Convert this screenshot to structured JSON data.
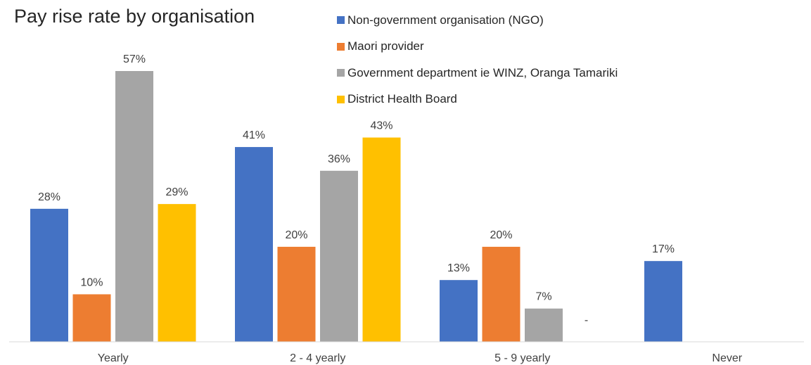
{
  "chart_data": {
    "type": "bar",
    "title": "Pay rise rate by organisation",
    "categories": [
      "Yearly",
      "2 - 4 yearly",
      "5 - 9 yearly",
      "Never"
    ],
    "series": [
      {
        "name": "Non-government organisation (NGO)",
        "color": "#4472C4",
        "values": [
          28,
          41,
          13,
          17
        ],
        "labels": [
          "28%",
          "41%",
          "13%",
          "17%"
        ]
      },
      {
        "name": "Maori provider",
        "color": "#ED7D31",
        "values": [
          10,
          20,
          20,
          null
        ],
        "labels": [
          "10%",
          "20%",
          "20%",
          ""
        ]
      },
      {
        "name": "Government department ie WINZ, Oranga Tamariki",
        "color": "#A5A5A5",
        "values": [
          57,
          36,
          7,
          null
        ],
        "labels": [
          "57%",
          "36%",
          "7%",
          ""
        ]
      },
      {
        "name": "District Health Board",
        "color": "#FFC000",
        "values": [
          29,
          43,
          0,
          null
        ],
        "labels": [
          "29%",
          "43%",
          "-",
          ""
        ]
      }
    ],
    "ylim": [
      0,
      57
    ],
    "grid": false,
    "legend": "top-right"
  }
}
